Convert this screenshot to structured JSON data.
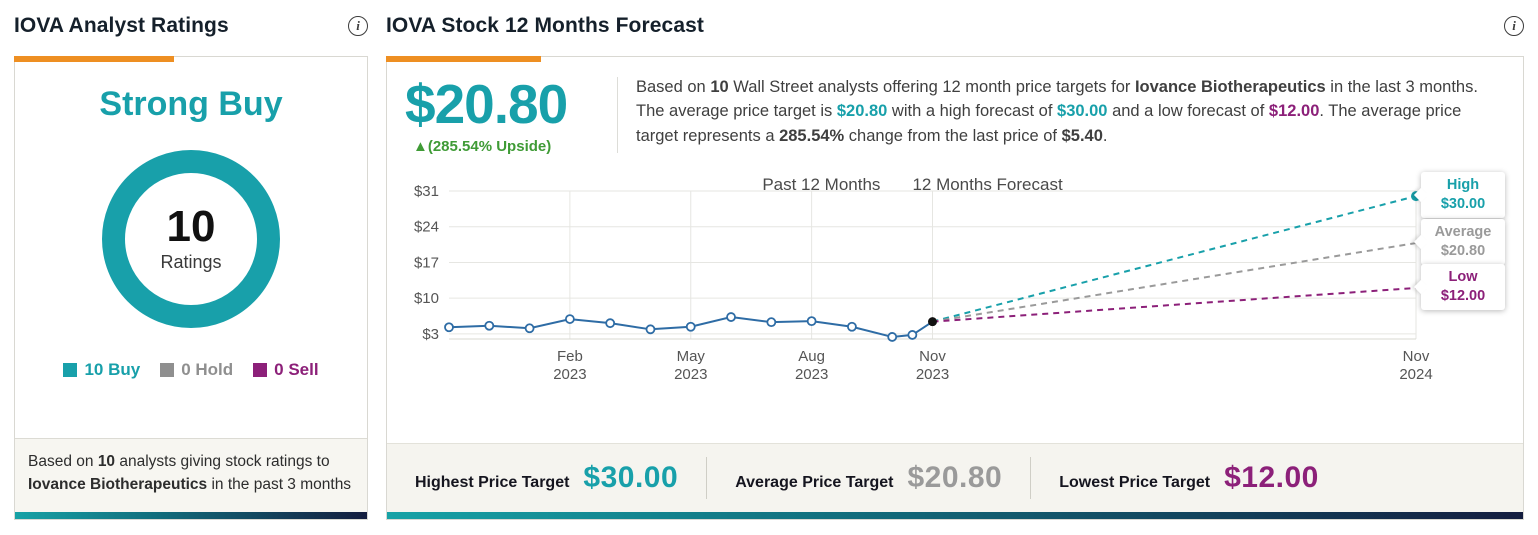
{
  "colors": {
    "teal": "#18a0aa",
    "green": "#3f9b36",
    "purple": "#8c2079",
    "gray": "#9a9a9a",
    "history_blue": "#2e6ca5",
    "orange_accent": "#ee8f22"
  },
  "left_panel": {
    "title": "IOVA Analyst Ratings",
    "rating": "Strong Buy",
    "ratings_count": "10",
    "ratings_label": "Ratings",
    "legend": [
      {
        "label": "10 Buy",
        "color": "#18a0aa"
      },
      {
        "label": "0 Hold",
        "color": "#8f8f8f"
      },
      {
        "label": "0 Sell",
        "color": "#8c2079"
      }
    ],
    "footer_segments": [
      {
        "t": "Based on "
      },
      {
        "t": "10",
        "b": true
      },
      {
        "t": " analysts giving stock ratings to "
      },
      {
        "t": "Iovance Biotherapeutics",
        "b": true
      },
      {
        "t": " in the past 3 months"
      }
    ]
  },
  "right_panel": {
    "title": "IOVA Stock 12 Months Forecast",
    "price_target": "$20.80",
    "upside": "▲(285.54% Upside)",
    "summary_segments": [
      {
        "t": "Based on "
      },
      {
        "t": "10",
        "b": true
      },
      {
        "t": " Wall Street analysts offering 12 month price targets for "
      },
      {
        "t": "Iovance Biotherapeutics",
        "b": true
      },
      {
        "t": " in the last 3 months. The average price target is "
      },
      {
        "t": "$20.80",
        "c": "#18a0aa"
      },
      {
        "t": " with a high forecast of "
      },
      {
        "t": "$30.00",
        "c": "#18a0aa"
      },
      {
        "t": " and a low forecast of "
      },
      {
        "t": "$12.00",
        "c": "#8c2079"
      },
      {
        "t": ". The average price target represents a "
      },
      {
        "t": "285.54%",
        "b": true
      },
      {
        "t": " change from the last price of "
      },
      {
        "t": "$5.40",
        "b": true
      },
      {
        "t": "."
      }
    ],
    "targets": [
      {
        "label": "Highest Price Target",
        "value": "$30.00",
        "color": "#18a0aa"
      },
      {
        "label": "Average Price Target",
        "value": "$20.80",
        "color": "#9a9a9a"
      },
      {
        "label": "Lowest Price Target",
        "value": "$12.00",
        "color": "#8c2079"
      }
    ]
  },
  "chart_data": {
    "type": "line",
    "title_left": "Past 12 Months",
    "title_right": "12 Months Forecast",
    "ylim": [
      2,
      31
    ],
    "x_months_total": 24,
    "y_ticks": [
      {
        "label": "$31",
        "value": 31
      },
      {
        "label": "$24",
        "value": 24
      },
      {
        "label": "$17",
        "value": 17
      },
      {
        "label": "$10",
        "value": 10
      },
      {
        "label": "$3",
        "value": 3
      }
    ],
    "x_ticks": [
      {
        "month": 3,
        "label": "Feb",
        "year": "2023"
      },
      {
        "month": 6,
        "label": "May",
        "year": "2023"
      },
      {
        "month": 9,
        "label": "Aug",
        "year": "2023"
      },
      {
        "month": 12,
        "label": "Nov",
        "year": "2023"
      },
      {
        "month": 24,
        "label": "Nov",
        "year": "2024"
      }
    ],
    "history_color": "#2e6ca5",
    "history": {
      "months": [
        0,
        1,
        2,
        3,
        4,
        5,
        6,
        7,
        8,
        9,
        10,
        11,
        11.5
      ],
      "values": [
        4.3,
        4.6,
        4.1,
        5.9,
        5.1,
        3.9,
        4.4,
        6.3,
        5.3,
        5.5,
        4.4,
        2.4,
        2.8
      ]
    },
    "last_price": {
      "month": 12,
      "value": 5.4,
      "label": "$5.40"
    },
    "forecast": [
      {
        "name": "High",
        "value": 30,
        "value_label": "$30.00",
        "color": "#18a0aa",
        "end_dot": true
      },
      {
        "name": "Average",
        "value": 20.8,
        "value_label": "$20.80",
        "color": "#9a9a9a",
        "end_dot": false
      },
      {
        "name": "Low",
        "value": 12,
        "value_label": "$12.00",
        "color": "#8c2079",
        "end_dot": false
      }
    ]
  }
}
